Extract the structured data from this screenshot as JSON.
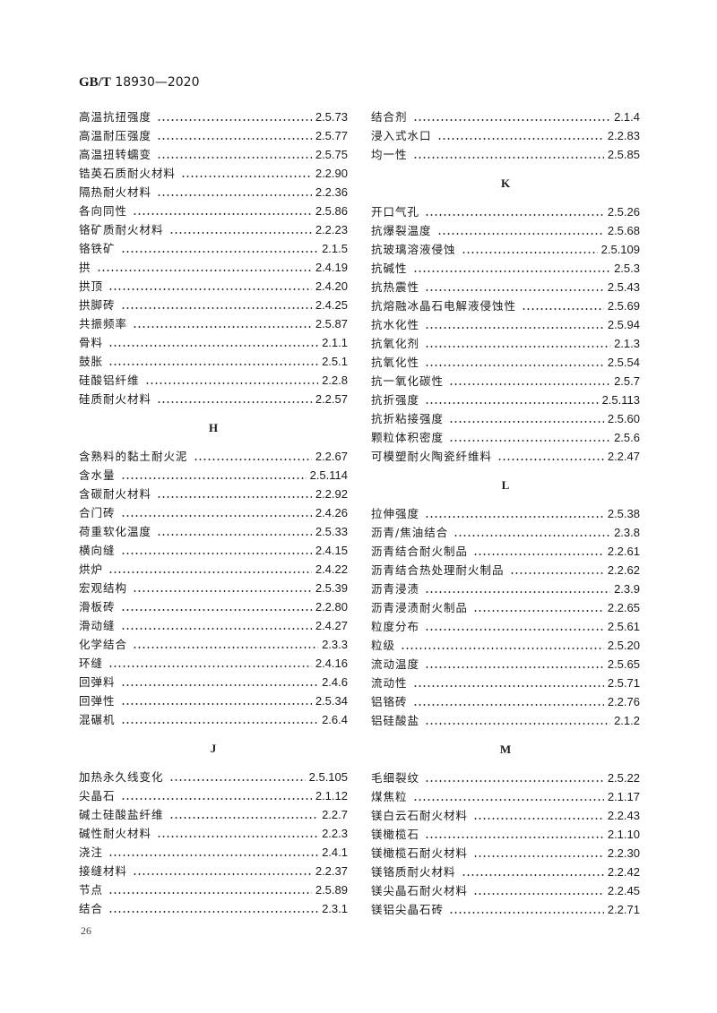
{
  "header": {
    "standard": "GB/T",
    "number": "18930—2020"
  },
  "page_number": "26",
  "left": [
    {
      "type": "rows",
      "items": [
        [
          "高温抗扭强度",
          "2.5.73"
        ],
        [
          "高温耐压强度",
          "2.5.77"
        ],
        [
          "高温扭转蠕变",
          "2.5.75"
        ],
        [
          "锆英石质耐火材料",
          "2.2.90"
        ],
        [
          "隔热耐火材料",
          "2.2.36"
        ],
        [
          "各向同性",
          "2.5.86"
        ],
        [
          "铬矿质耐火材料",
          "2.2.23"
        ],
        [
          "铬铁矿",
          "2.1.5"
        ],
        [
          "拱",
          "2.4.19"
        ],
        [
          "拱顶",
          "2.4.20"
        ],
        [
          "拱脚砖",
          "2.4.25"
        ],
        [
          "共振频率",
          "2.5.87"
        ],
        [
          "骨料",
          "2.1.1"
        ],
        [
          "鼓胀",
          "2.5.1"
        ],
        [
          "硅酸铝纤维",
          "2.2.8"
        ],
        [
          "硅质耐火材料",
          "2.2.57"
        ]
      ]
    },
    {
      "type": "heading",
      "text": "H"
    },
    {
      "type": "rows",
      "items": [
        [
          "含熟料的黏土耐火泥",
          "2.2.67"
        ],
        [
          "含水量",
          "2.5.114"
        ],
        [
          "含碳耐火材料",
          "2.2.92"
        ],
        [
          "合门砖",
          "2.4.26"
        ],
        [
          "荷重软化温度",
          "2.5.33"
        ],
        [
          "横向缝",
          "2.4.15"
        ],
        [
          "烘炉",
          "2.4.22"
        ],
        [
          "宏观结构",
          "2.5.39"
        ],
        [
          "滑板砖",
          "2.2.80"
        ],
        [
          "滑动缝",
          "2.4.27"
        ],
        [
          "化学结合",
          "2.3.3"
        ],
        [
          "环缝",
          "2.4.16"
        ],
        [
          "回弹料",
          "2.4.6"
        ],
        [
          "回弹性",
          "2.5.34"
        ],
        [
          "混碾机",
          "2.6.4"
        ]
      ]
    },
    {
      "type": "heading",
      "text": "J"
    },
    {
      "type": "rows",
      "items": [
        [
          "加热永久线变化",
          "2.5.105"
        ],
        [
          "尖晶石",
          "2.1.12"
        ],
        [
          "碱土硅酸盐纤维",
          "2.2.7"
        ],
        [
          "碱性耐火材料",
          "2.2.3"
        ],
        [
          "浇注",
          "2.4.1"
        ],
        [
          "接缝材料",
          "2.2.37"
        ],
        [
          "节点",
          "2.5.89"
        ],
        [
          "结合",
          "2.3.1"
        ]
      ]
    }
  ],
  "right": [
    {
      "type": "rows",
      "items": [
        [
          "结合剂",
          "2.1.4"
        ],
        [
          "浸入式水口",
          "2.2.83"
        ],
        [
          "均一性",
          "2.5.85"
        ]
      ]
    },
    {
      "type": "heading",
      "text": "K"
    },
    {
      "type": "rows",
      "items": [
        [
          "开口气孔",
          "2.5.26"
        ],
        [
          "抗爆裂温度",
          "2.5.68"
        ],
        [
          "抗玻璃溶液侵蚀",
          "2.5.109"
        ],
        [
          "抗碱性",
          "2.5.3"
        ],
        [
          "抗热震性",
          "2.5.43"
        ],
        [
          "抗熔融冰晶石电解液侵蚀性",
          "2.5.69"
        ],
        [
          "抗水化性",
          "2.5.94"
        ],
        [
          "抗氧化剂",
          "2.1.3"
        ],
        [
          "抗氧化性",
          "2.5.54"
        ],
        [
          "抗一氧化碳性",
          "2.5.7"
        ],
        [
          "抗折强度",
          "2.5.113"
        ],
        [
          "抗折粘接强度",
          "2.5.60"
        ],
        [
          "颗粒体积密度",
          "2.5.6"
        ],
        [
          "可模塑耐火陶瓷纤维料",
          "2.2.47"
        ]
      ]
    },
    {
      "type": "heading",
      "text": "L"
    },
    {
      "type": "rows",
      "items": [
        [
          "拉伸强度",
          "2.5.38"
        ],
        [
          "沥青/焦油结合",
          "2.3.8"
        ],
        [
          "沥青结合耐火制品",
          "2.2.61"
        ],
        [
          "沥青结合热处理耐火制品",
          "2.2.62"
        ],
        [
          "沥青浸渍",
          "2.3.9"
        ],
        [
          "沥青浸渍耐火制品",
          "2.2.65"
        ],
        [
          "粒度分布",
          "2.5.61"
        ],
        [
          "粒级",
          "2.5.20"
        ],
        [
          "流动温度",
          "2.5.65"
        ],
        [
          "流动性",
          "2.5.71"
        ],
        [
          "铝铬砖",
          "2.2.76"
        ],
        [
          "铝硅酸盐",
          "2.1.2"
        ]
      ]
    },
    {
      "type": "heading",
      "text": "M"
    },
    {
      "type": "rows",
      "items": [
        [
          "毛细裂纹",
          "2.5.22"
        ],
        [
          "煤焦粒",
          "2.1.17"
        ],
        [
          "镁白云石耐火材料",
          "2.2.43"
        ],
        [
          "镁橄榄石",
          "2.1.10"
        ],
        [
          "镁橄榄石耐火材料",
          "2.2.30"
        ],
        [
          "镁铬质耐火材料",
          "2.2.42"
        ],
        [
          "镁尖晶石耐火材料",
          "2.2.45"
        ],
        [
          "镁铝尖晶石砖",
          "2.2.71"
        ]
      ]
    }
  ]
}
